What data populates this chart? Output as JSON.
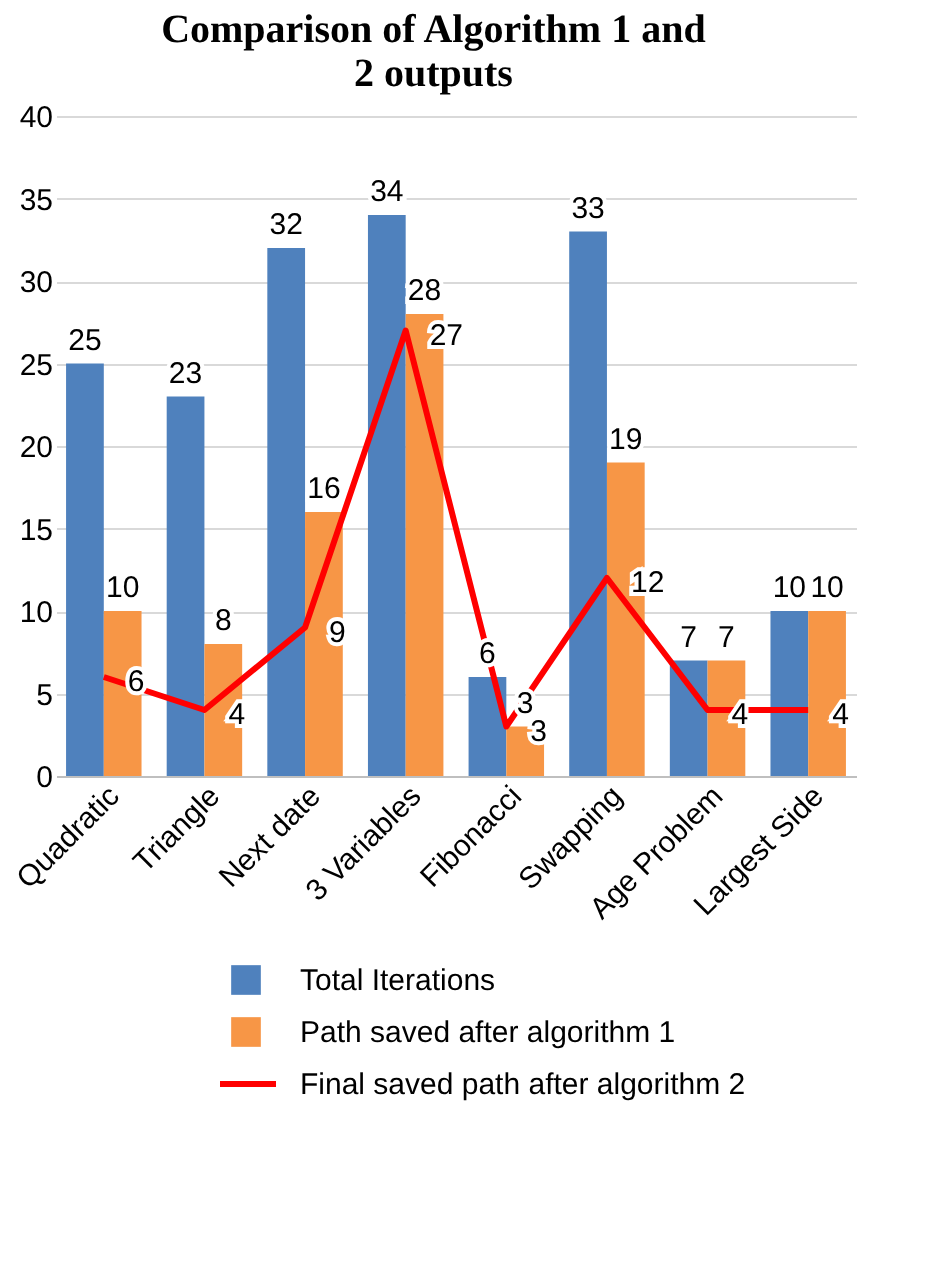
{
  "chart_data": {
    "type": "bar",
    "title": "Comparison of Algorithm 1 and 2 outputs",
    "categories": [
      "Quadratic",
      "Triangle",
      "Next date",
      "3 Variables",
      "Fibonacci",
      "Swapping",
      "Age Problem",
      "Largest Side"
    ],
    "series": [
      {
        "name": "Total Iterations",
        "color": "#4f81bd",
        "values": [
          25,
          23,
          32,
          34,
          6,
          33,
          7,
          10
        ]
      },
      {
        "name": "Path saved after algorithm 1",
        "color": "#f79646",
        "values": [
          10,
          8,
          16,
          28,
          3,
          19,
          7,
          10
        ]
      },
      {
        "name": "Final saved path after algorithm 2",
        "color": "#ff0000",
        "type": "line",
        "values": [
          6,
          4,
          9,
          27,
          3,
          12,
          4,
          4
        ]
      }
    ],
    "ylim": [
      0,
      40
    ],
    "yticks": [
      0,
      5,
      10,
      15,
      20,
      25,
      30,
      35,
      40
    ],
    "grid": "y",
    "legend": "bottom",
    "data_labels": true
  }
}
